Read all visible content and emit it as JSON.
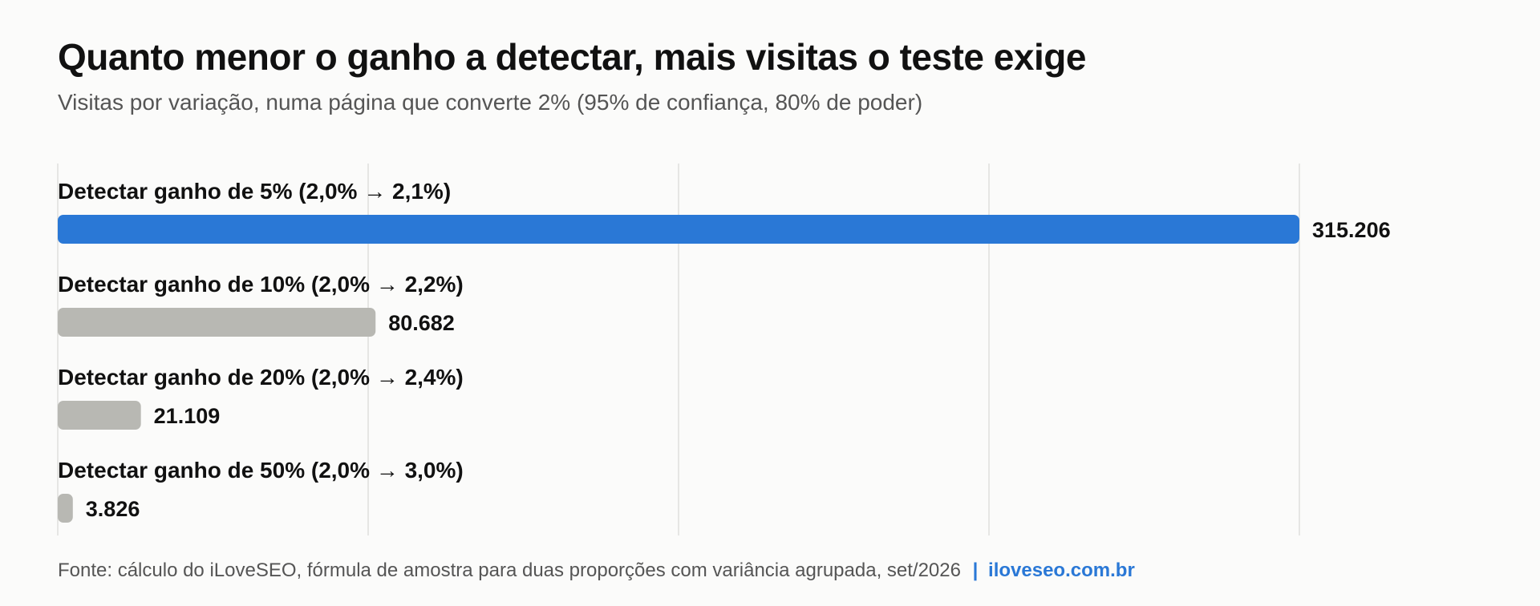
{
  "title": "Quanto menor o ganho a detectar, mais visitas o teste exige",
  "subtitle": "Visitas por variação, numa página que converte 2% (95% de confiança, 80% de poder)",
  "footer": {
    "source": "Fonte: cálculo do iLoveSEO, fórmula de amostra para duas proporções com variância agrupada, set/2026",
    "separator": "|",
    "site": "iloveseo.com.br"
  },
  "colors": {
    "highlight": "#2a78d6",
    "muted": "#b8b8b3",
    "grid": "#e0e0dc",
    "text": "#111111"
  },
  "chart_data": {
    "type": "bar",
    "orientation": "horizontal",
    "categories": [
      "Detectar ganho de 5% (2,0% → 2,1%)",
      "Detectar ganho de 10% (2,0% → 2,2%)",
      "Detectar ganho de 20% (2,0% → 2,4%)",
      "Detectar ganho de 50% (2,0% → 3,0%)"
    ],
    "values": [
      315206,
      80682,
      21109,
      3826
    ],
    "value_labels": [
      "315.206",
      "80.682",
      "21.109",
      "3.826"
    ],
    "highlighted_index": 0,
    "xlim": [
      0,
      315206
    ],
    "grid": true,
    "gridlines": 5,
    "legend": "none"
  }
}
